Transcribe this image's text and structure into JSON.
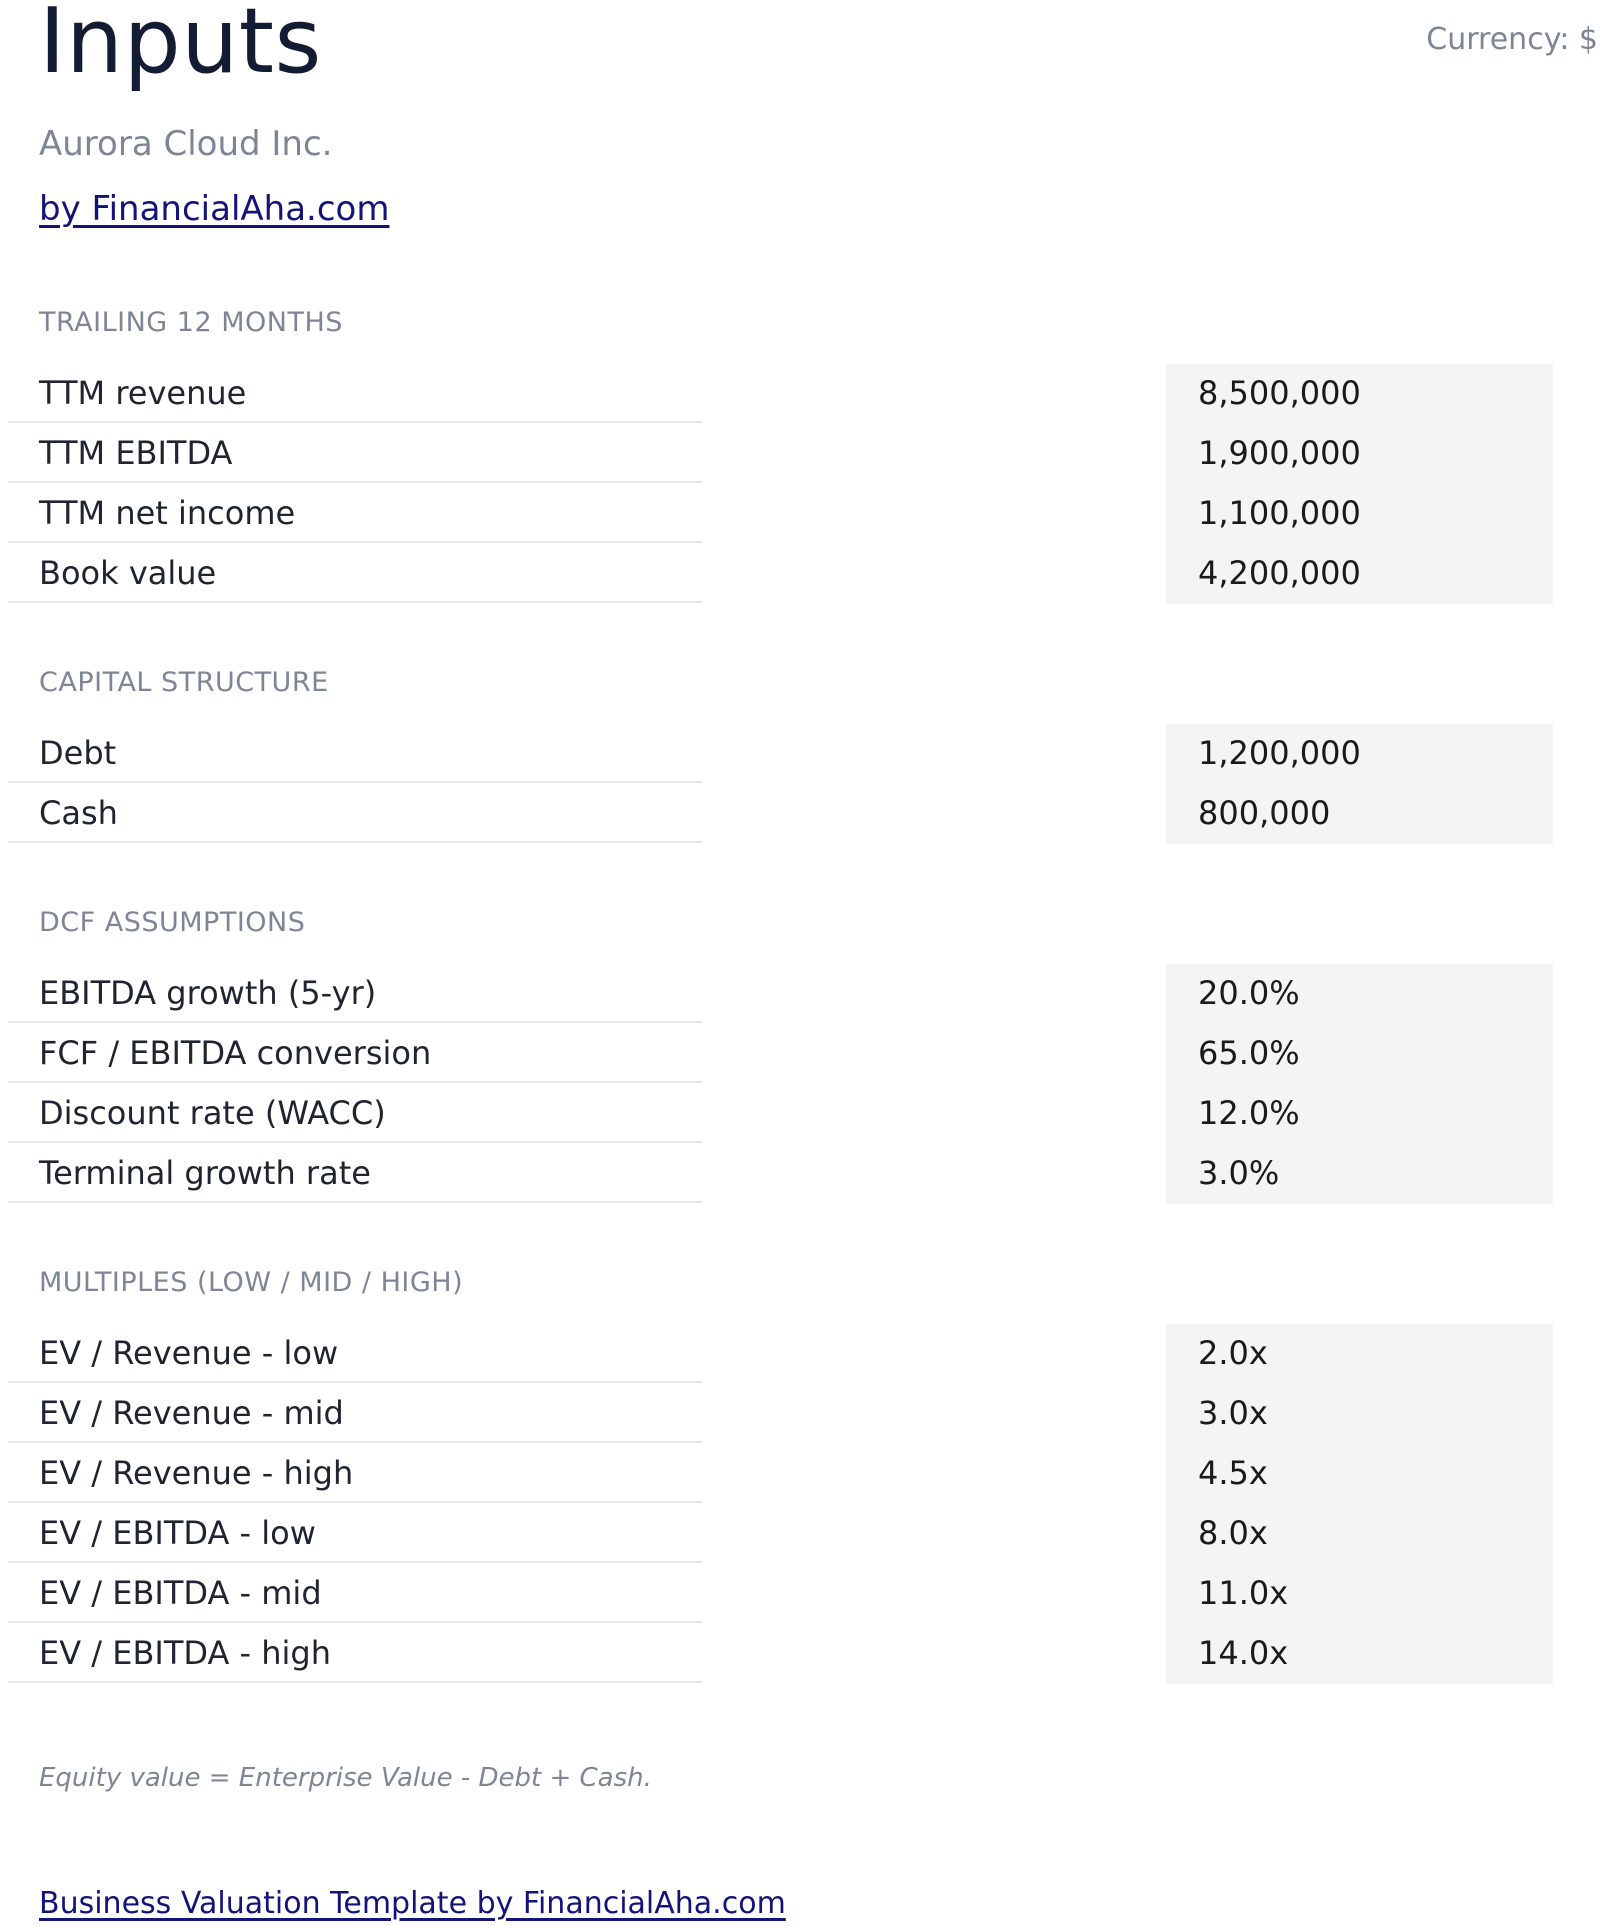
{
  "header": {
    "title": "Inputs",
    "currency": "Currency: $",
    "company": "Aurora Cloud Inc.",
    "byline": "by FinancialAha.com"
  },
  "sections": {
    "trailing": {
      "heading": "TRAILING 12 MONTHS",
      "rows": [
        {
          "label": "TTM revenue",
          "value": "8,500,000"
        },
        {
          "label": "TTM EBITDA",
          "value": "1,900,000"
        },
        {
          "label": "TTM net income",
          "value": "1,100,000"
        },
        {
          "label": "Book value",
          "value": "4,200,000"
        }
      ]
    },
    "capital": {
      "heading": "CAPITAL STRUCTURE",
      "rows": [
        {
          "label": "Debt",
          "value": "1,200,000"
        },
        {
          "label": "Cash",
          "value": "800,000"
        }
      ]
    },
    "dcf": {
      "heading": "DCF ASSUMPTIONS",
      "rows": [
        {
          "label": "EBITDA growth (5-yr)",
          "value": "20.0%"
        },
        {
          "label": "FCF / EBITDA conversion",
          "value": "65.0%"
        },
        {
          "label": "Discount rate (WACC)",
          "value": "12.0%"
        },
        {
          "label": "Terminal growth rate",
          "value": "3.0%"
        }
      ]
    },
    "multiples": {
      "heading": "MULTIPLES (LOW / MID / HIGH)",
      "rows": [
        {
          "label": "EV / Revenue - low",
          "value": "2.0x"
        },
        {
          "label": "EV / Revenue - mid",
          "value": "3.0x"
        },
        {
          "label": "EV / Revenue - high",
          "value": "4.5x"
        },
        {
          "label": "EV / EBITDA - low",
          "value": "8.0x"
        },
        {
          "label": "EV / EBITDA - mid",
          "value": "11.0x"
        },
        {
          "label": "EV / EBITDA - high",
          "value": "14.0x"
        }
      ]
    }
  },
  "note": "Equity value = Enterprise Value - Debt + Cash.",
  "footer": {
    "link": "Business Valuation Template by FinancialAha.com"
  }
}
